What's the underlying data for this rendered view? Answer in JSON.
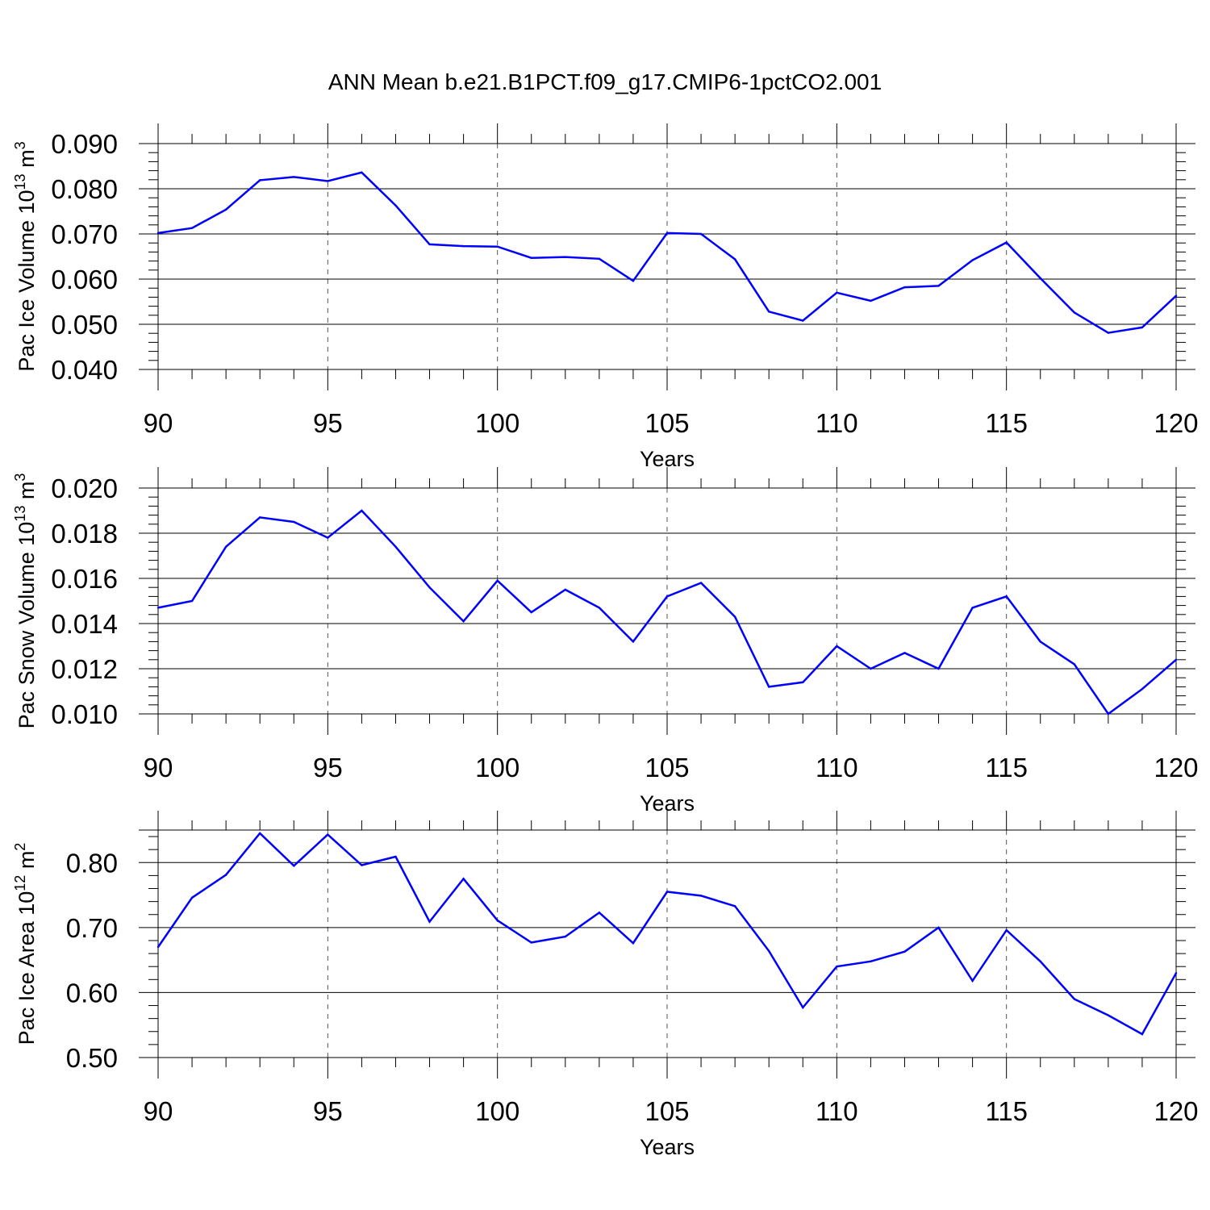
{
  "title": "ANN Mean b.e21.B1PCT.f09_g17.CMIP6-1pctCO2.001",
  "colors": {
    "line": "#0000ff",
    "axis": "#000000",
    "grid": "#555555"
  },
  "chart_data": [
    {
      "type": "line",
      "ylabel": {
        "main": "Pac Ice Volume 10",
        "exp": "13",
        "unit": " m",
        "unit_exp": "3"
      },
      "xlabel": "Years",
      "xlim": [
        90,
        120
      ],
      "ylim": [
        0.04,
        0.09
      ],
      "yticks": [
        0.04,
        0.05,
        0.06,
        0.07,
        0.08,
        0.09
      ],
      "ytick_labels": [
        "0.040",
        "0.050",
        "0.060",
        "0.070",
        "0.080",
        "0.090"
      ],
      "xticks": [
        90,
        95,
        100,
        105,
        110,
        115,
        120
      ],
      "xtick_labels": [
        "90",
        "95",
        "100",
        "105",
        "110",
        "115",
        "120"
      ],
      "x": [
        90,
        91,
        92,
        93,
        94,
        95,
        96,
        97,
        98,
        99,
        100,
        101,
        102,
        103,
        104,
        105,
        106,
        107,
        108,
        109,
        110,
        111,
        112,
        113,
        114,
        115,
        116,
        117,
        118,
        119,
        120
      ],
      "values": [
        0.0702,
        0.0713,
        0.0754,
        0.0819,
        0.0826,
        0.0817,
        0.0836,
        0.0763,
        0.0677,
        0.0673,
        0.0672,
        0.0647,
        0.0649,
        0.0645,
        0.0596,
        0.0702,
        0.07,
        0.0644,
        0.0528,
        0.0508,
        0.057,
        0.0552,
        0.0582,
        0.0585,
        0.0642,
        0.0681,
        0.0602,
        0.0526,
        0.0481,
        0.0493,
        0.0563
      ],
      "grid": "dashed vertical at major x ticks"
    },
    {
      "type": "line",
      "ylabel": {
        "main": "Pac Snow Volume 10",
        "exp": "13",
        "unit": " m",
        "unit_exp": "3"
      },
      "xlabel": "Years",
      "xlim": [
        90,
        120
      ],
      "ylim": [
        0.01,
        0.02
      ],
      "yticks": [
        0.01,
        0.012,
        0.014,
        0.016,
        0.018,
        0.02
      ],
      "ytick_labels": [
        "0.010",
        "0.012",
        "0.014",
        "0.016",
        "0.018",
        "0.020"
      ],
      "xticks": [
        90,
        95,
        100,
        105,
        110,
        115,
        120
      ],
      "xtick_labels": [
        "90",
        "95",
        "100",
        "105",
        "110",
        "115",
        "120"
      ],
      "x": [
        90,
        91,
        92,
        93,
        94,
        95,
        96,
        97,
        98,
        99,
        100,
        101,
        102,
        103,
        104,
        105,
        106,
        107,
        108,
        109,
        110,
        111,
        112,
        113,
        114,
        115,
        116,
        117,
        118,
        119,
        120
      ],
      "values": [
        0.0147,
        0.015,
        0.0174,
        0.0187,
        0.0185,
        0.0178,
        0.019,
        0.0174,
        0.0156,
        0.0141,
        0.0159,
        0.0145,
        0.0155,
        0.0147,
        0.0132,
        0.0152,
        0.0158,
        0.0143,
        0.0112,
        0.0114,
        0.013,
        0.012,
        0.0127,
        0.012,
        0.0147,
        0.0152,
        0.0132,
        0.0122,
        0.01,
        0.0111,
        0.0124
      ],
      "grid": "dashed vertical at major x ticks"
    },
    {
      "type": "line",
      "ylabel": {
        "main": "Pac Ice Area 10",
        "exp": "12",
        "unit": " m",
        "unit_exp": "2"
      },
      "xlabel": "Years",
      "xlim": [
        90,
        120
      ],
      "ylim": [
        0.5,
        0.85
      ],
      "yticks": [
        0.5,
        0.6,
        0.7,
        0.8
      ],
      "ytick_labels": [
        "0.50",
        "0.60",
        "0.70",
        "0.80"
      ],
      "xticks": [
        90,
        95,
        100,
        105,
        110,
        115,
        120
      ],
      "xtick_labels": [
        "90",
        "95",
        "100",
        "105",
        "110",
        "115",
        "120"
      ],
      "x": [
        90,
        91,
        92,
        93,
        94,
        95,
        96,
        97,
        98,
        99,
        100,
        101,
        102,
        103,
        104,
        105,
        106,
        107,
        108,
        109,
        110,
        111,
        112,
        113,
        114,
        115,
        116,
        117,
        118,
        119,
        120
      ],
      "values": [
        0.67,
        0.746,
        0.781,
        0.845,
        0.795,
        0.843,
        0.796,
        0.809,
        0.709,
        0.775,
        0.711,
        0.677,
        0.686,
        0.723,
        0.676,
        0.755,
        0.749,
        0.733,
        0.664,
        0.577,
        0.64,
        0.648,
        0.663,
        0.7,
        0.618,
        0.696,
        0.648,
        0.59,
        0.565,
        0.536,
        0.63
      ],
      "grid": "dashed vertical at major x ticks"
    }
  ]
}
